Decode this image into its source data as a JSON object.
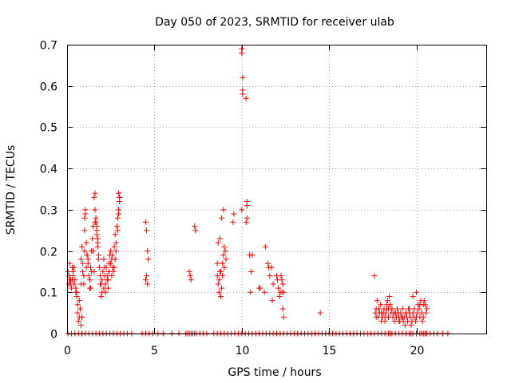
{
  "chart_data": {
    "type": "scatter",
    "title": "Day 050 of 2023, SRMTID for receiver ulab",
    "xlabel": "GPS time / hours",
    "ylabel": "SRMTID / TECUs",
    "xlim": [
      0,
      24
    ],
    "ylim": [
      0,
      0.7
    ],
    "xticks": [
      0,
      5,
      10,
      15,
      20
    ],
    "xtick_labels": [
      "0",
      "5",
      "10",
      "15",
      "20"
    ],
    "yticks": [
      0,
      0.1,
      0.2,
      0.3,
      0.4,
      0.5,
      0.6,
      0.7
    ],
    "ytick_labels": [
      "0",
      "0.1",
      "0.2",
      "0.3",
      "0.4",
      "0.5",
      "0.6",
      "0.7"
    ],
    "grid": true,
    "marker": "plus",
    "series_color": "#ff0000",
    "series": [
      {
        "name": "SRMTID",
        "x": [
          0.05,
          0.1,
          0.15,
          0.2,
          0.25,
          0.3,
          0.35,
          0.4,
          0.45,
          0.5,
          0.55,
          0.6,
          0.65,
          0.7,
          0.75,
          0.8,
          0.85,
          0.9,
          0.95,
          1.0,
          1.05,
          1.1,
          1.15,
          1.2,
          1.25,
          1.3,
          1.35,
          1.4,
          1.45,
          1.5,
          1.55,
          1.6,
          1.65,
          1.7,
          1.75,
          1.8,
          1.85,
          1.9,
          1.95,
          2.0,
          2.05,
          2.1,
          2.15,
          2.2,
          2.25,
          2.3,
          2.35,
          2.4,
          2.45,
          2.5,
          2.55,
          2.6,
          2.65,
          2.7,
          2.75,
          2.8,
          2.85,
          2.9,
          2.95,
          3.0,
          0.1,
          0.2,
          0.3,
          0.4,
          0.5,
          0.6,
          0.7,
          0.8,
          0.9,
          1.0,
          1.1,
          1.2,
          1.3,
          1.4,
          1.5,
          1.6,
          1.7,
          1.8,
          1.9,
          2.0,
          2.1,
          2.2,
          2.3,
          2.4,
          2.5,
          2.6,
          2.7,
          2.8,
          2.9,
          3.0,
          0.15,
          0.35,
          0.55,
          0.75,
          0.95,
          1.15,
          1.35,
          1.55,
          1.75,
          1.95,
          2.15,
          2.35,
          2.55,
          2.75,
          2.95,
          0.8,
          0.85,
          1.0,
          1.05,
          1.6,
          1.65,
          1.7,
          1.75,
          2.95,
          3.0,
          4.5,
          4.55,
          4.6,
          4.65,
          4.5,
          4.55,
          4.6,
          7.0,
          7.05,
          7.1,
          7.3,
          7.35,
          8.6,
          8.65,
          8.7,
          8.75,
          8.8,
          8.85,
          8.9,
          8.95,
          9.0,
          9.05,
          9.1,
          8.6,
          8.7,
          8.8,
          8.9,
          9.0,
          8.65,
          8.75,
          8.85,
          8.95,
          9.5,
          9.55,
          10.0,
          10.0,
          10.0,
          10.05,
          10.05,
          10.05,
          10.25,
          10.3,
          10.3,
          10.3,
          10.25,
          10.5,
          10.55,
          10.6,
          10.45,
          11.0,
          11.05,
          11.3,
          11.35,
          11.5,
          11.55,
          11.6,
          11.7,
          11.75,
          11.8,
          12.0,
          12.05,
          12.1,
          12.15,
          12.2,
          12.25,
          12.3,
          12.35,
          12.4,
          12.3,
          12.35,
          12.4,
          14.5,
          17.6,
          17.65,
          17.7,
          17.75,
          17.8,
          17.85,
          17.9,
          17.95,
          18.0,
          18.05,
          18.1,
          18.15,
          18.2,
          18.25,
          18.3,
          18.35,
          18.4,
          18.45,
          18.5,
          18.55,
          18.6,
          18.65,
          18.7,
          18.75,
          18.8,
          18.85,
          18.9,
          18.95,
          19.0,
          19.05,
          19.1,
          19.15,
          19.2,
          19.25,
          19.3,
          19.35,
          19.4,
          19.45,
          19.5,
          19.55,
          19.6,
          19.65,
          19.7,
          19.75,
          19.8,
          19.85,
          19.9,
          19.95,
          20.0,
          20.05,
          20.1,
          20.15,
          20.2,
          20.25,
          20.3,
          20.35,
          20.4,
          20.45,
          20.5,
          20.55,
          20.6,
          17.7,
          18.0,
          18.2,
          18.4,
          18.6,
          18.8,
          19.0,
          19.2,
          19.4,
          19.6,
          19.8,
          20.0,
          20.2,
          20.4,
          18.3,
          18.5,
          19.7,
          20.3,
          20.5,
          0.05,
          0.25,
          0.45,
          0.65,
          0.85,
          1.05,
          1.25,
          1.45,
          1.65,
          1.85,
          2.05,
          2.25,
          2.45,
          2.65,
          2.85,
          3.05,
          3.25,
          3.45,
          3.7,
          4.3,
          4.5,
          4.7,
          4.9,
          5.2,
          5.5,
          6.0,
          6.4,
          6.8,
          6.9,
          7.0,
          7.1,
          7.2,
          7.3,
          7.4,
          7.6,
          7.8,
          8.0,
          8.4,
          8.6,
          8.8,
          9.0,
          9.2,
          9.4,
          9.6,
          9.8,
          10.0,
          10.2,
          10.4,
          10.6,
          10.8,
          11.0,
          11.2,
          11.4,
          11.6,
          11.8,
          12.0,
          12.2,
          12.4,
          12.6,
          12.8,
          13.0,
          13.2,
          13.4,
          13.6,
          13.8,
          14.0,
          14.2,
          14.4,
          14.6,
          14.8,
          15.0,
          15.2,
          15.4,
          15.6,
          15.8,
          16.0,
          16.2,
          16.4,
          16.6,
          16.8,
          17.0,
          17.2,
          17.4,
          17.6,
          17.8,
          18.0,
          18.2,
          18.4,
          18.6,
          18.8,
          19.0,
          19.2,
          19.4,
          19.6,
          19.8,
          20.0,
          20.2,
          20.4,
          20.6,
          20.8,
          21.0,
          21.2,
          21.5,
          21.8
        ],
        "y": [
          0.15,
          0.12,
          0.17,
          0.13,
          0.11,
          0.16,
          0.14,
          0.12,
          0.13,
          0.1,
          0.09,
          0.05,
          0.03,
          0.08,
          0.06,
          0.18,
          0.21,
          0.15,
          0.12,
          0.25,
          0.29,
          0.22,
          0.19,
          0.17,
          0.14,
          0.11,
          0.16,
          0.2,
          0.23,
          0.26,
          0.33,
          0.34,
          0.28,
          0.25,
          0.22,
          0.19,
          0.16,
          0.14,
          0.12,
          0.1,
          0.15,
          0.18,
          0.14,
          0.12,
          0.16,
          0.13,
          0.11,
          0.17,
          0.19,
          0.2,
          0.18,
          0.16,
          0.15,
          0.21,
          0.24,
          0.22,
          0.26,
          0.28,
          0.3,
          0.32,
          0.14,
          0.12,
          0.13,
          0.16,
          0.11,
          0.07,
          0.04,
          0.12,
          0.17,
          0.2,
          0.16,
          0.18,
          0.13,
          0.15,
          0.2,
          0.27,
          0.24,
          0.18,
          0.12,
          0.13,
          0.11,
          0.1,
          0.14,
          0.15,
          0.17,
          0.19,
          0.16,
          0.2,
          0.25,
          0.33,
          0.13,
          0.15,
          0.1,
          0.06,
          0.14,
          0.19,
          0.11,
          0.15,
          0.21,
          0.09,
          0.16,
          0.13,
          0.14,
          0.18,
          0.29,
          0.02,
          0.04,
          0.28,
          0.3,
          0.3,
          0.27,
          0.26,
          0.23,
          0.34,
          0.33,
          0.27,
          0.25,
          0.2,
          0.18,
          0.13,
          0.14,
          0.12,
          0.15,
          0.14,
          0.13,
          0.26,
          0.25,
          0.14,
          0.12,
          0.1,
          0.15,
          0.09,
          0.11,
          0.17,
          0.19,
          0.21,
          0.2,
          0.18,
          0.17,
          0.13,
          0.15,
          0.14,
          0.16,
          0.22,
          0.23,
          0.28,
          0.3,
          0.27,
          0.29,
          0.3,
          0.69,
          0.68,
          0.62,
          0.59,
          0.58,
          0.57,
          0.32,
          0.31,
          0.28,
          0.27,
          0.1,
          0.15,
          0.19,
          0.19,
          0.11,
          0.11,
          0.1,
          0.21,
          0.17,
          0.16,
          0.14,
          0.16,
          0.08,
          0.12,
          0.14,
          0.13,
          0.11,
          0.09,
          0.1,
          0.14,
          0.13,
          0.12,
          0.1,
          0.1,
          0.06,
          0.04,
          0.05,
          0.14,
          0.05,
          0.06,
          0.08,
          0.04,
          0.06,
          0.05,
          0.07,
          0.03,
          0.04,
          0.05,
          0.06,
          0.04,
          0.05,
          0.07,
          0.08,
          0.06,
          0.09,
          0.07,
          0.05,
          0.06,
          0.04,
          0.05,
          0.03,
          0.05,
          0.04,
          0.06,
          0.05,
          0.04,
          0.03,
          0.05,
          0.04,
          0.06,
          0.03,
          0.04,
          0.02,
          0.05,
          0.04,
          0.03,
          0.06,
          0.05,
          0.04,
          0.02,
          0.03,
          0.05,
          0.04,
          0.06,
          0.03,
          0.04,
          0.05,
          0.07,
          0.06,
          0.04,
          0.08,
          0.05,
          0.03,
          0.07,
          0.08,
          0.07,
          0.05,
          0.06,
          0.04,
          0.05,
          0.03,
          0.04,
          0.06,
          0.05,
          0.03,
          0.04,
          0.05,
          0.06,
          0.09,
          0.1,
          0.07,
          0.04,
          0.06,
          0,
          0,
          0,
          0,
          0,
          0,
          0,
          0,
          0,
          0,
          0,
          0,
          0,
          0,
          0,
          0,
          0,
          0,
          0,
          0,
          0,
          0,
          0,
          0,
          0,
          0,
          0,
          0,
          0,
          0,
          0,
          0,
          0,
          0,
          0,
          0,
          0,
          0,
          0,
          0,
          0,
          0,
          0,
          0,
          0,
          0,
          0,
          0,
          0,
          0,
          0,
          0,
          0,
          0,
          0,
          0,
          0,
          0,
          0,
          0,
          0,
          0,
          0,
          0,
          0,
          0,
          0,
          0,
          0,
          0,
          0,
          0,
          0,
          0,
          0,
          0,
          0,
          0,
          0,
          0,
          0,
          0,
          0,
          0,
          0,
          0,
          0,
          0,
          0,
          0,
          0,
          0,
          0,
          0,
          0,
          0,
          0,
          0,
          0,
          0,
          0,
          0,
          0,
          0,
          0,
          0,
          0,
          0
        ]
      }
    ]
  }
}
